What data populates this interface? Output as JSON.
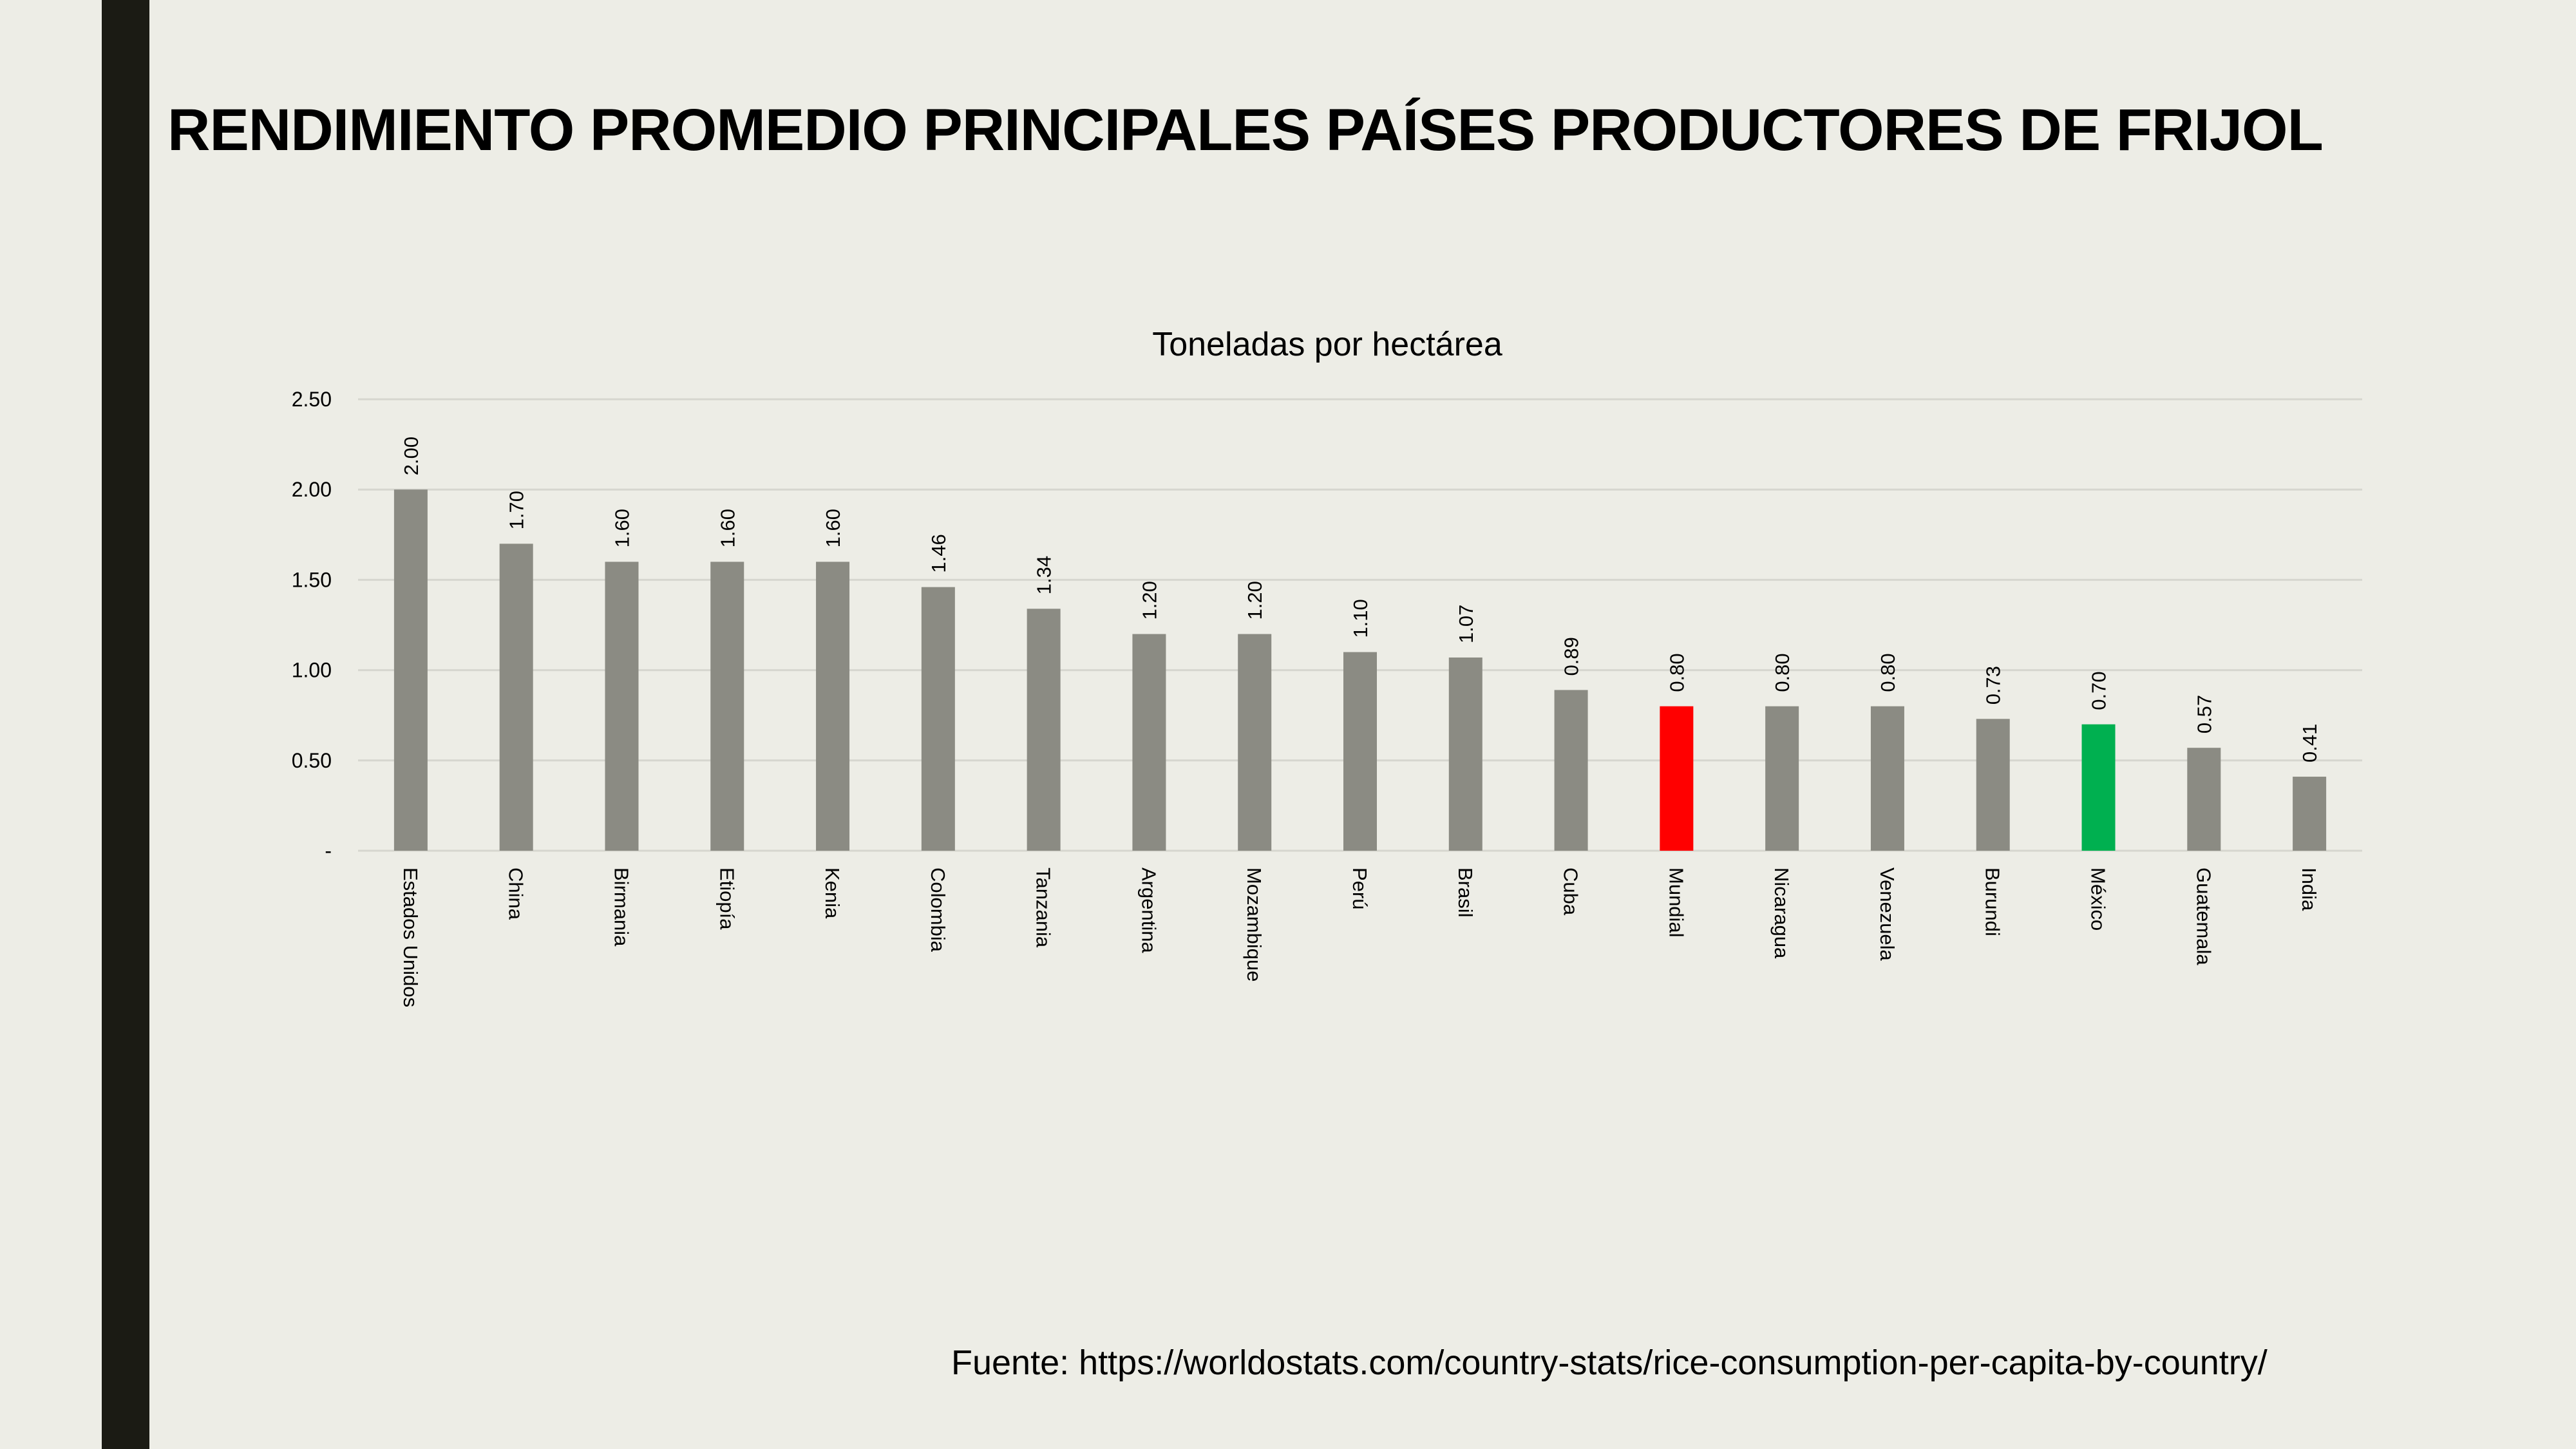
{
  "title": "RENDIMIENTO PROMEDIO PRINCIPALES PAÍSES PRODUCTORES DE FRIJOL",
  "source": "Fuente: https://worldostats.com/country-stats/rice-consumption-per-capita-by-country/",
  "chart_data": {
    "type": "bar",
    "title": "Toneladas por hectárea",
    "xlabel": "",
    "ylabel": "",
    "ylim": [
      0,
      2.5
    ],
    "yticks": [
      0,
      0.5,
      1.0,
      1.5,
      2.0,
      2.5
    ],
    "ytick_labels": [
      "-",
      "0.50",
      "1.00",
      "1.50",
      "2.00",
      "2.50"
    ],
    "grid": true,
    "categories": [
      "Estados Unidos",
      "China",
      "Birmania",
      "Etiopía",
      "Kenia",
      "Colombia",
      "Tanzania",
      "Argentina",
      "Mozambique",
      "Perú",
      "Brasil",
      "Cuba",
      "Mundial",
      "Nicaragua",
      "Venezuela",
      "Burundi",
      "México",
      "Guatemala",
      "India"
    ],
    "values": [
      2.0,
      1.7,
      1.6,
      1.6,
      1.6,
      1.46,
      1.34,
      1.2,
      1.2,
      1.1,
      1.07,
      0.89,
      0.8,
      0.8,
      0.8,
      0.73,
      0.7,
      0.57,
      0.41
    ],
    "value_labels": [
      "2.00",
      "1.70",
      "1.60",
      "1.60",
      "1.60",
      "1.46",
      "1.34",
      "1.20",
      "1.20",
      "1.10",
      "1.07",
      "0.89",
      "0.80",
      "0.80",
      "0.80",
      "0.73",
      "0.70",
      "0.57",
      "0.41"
    ],
    "colors": {
      "default": "#8B8B83",
      "Mundial": "#FF0000",
      "México": "#00B050"
    }
  }
}
